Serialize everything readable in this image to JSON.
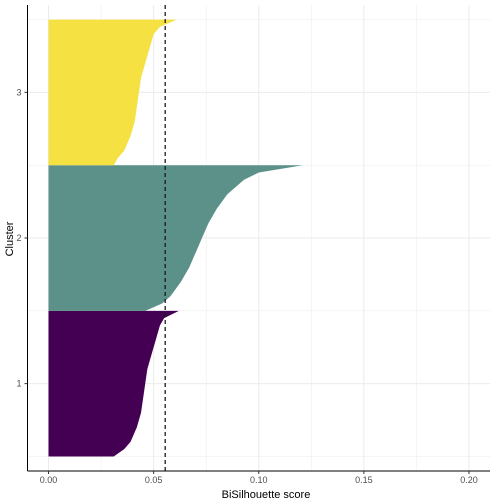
{
  "chart_data": {
    "type": "silhouette",
    "xlabel": "BiSilhouette score",
    "ylabel": "Cluster",
    "xlim": [
      -0.01,
      0.21
    ],
    "x_ticks": [
      0.0,
      0.05,
      0.1,
      0.15,
      0.2
    ],
    "x_tick_labels": [
      "0.00",
      "0.05",
      "0.10",
      "0.15",
      "0.20"
    ],
    "y_categories": [
      "1",
      "2",
      "3"
    ],
    "grid": true,
    "reference_line": {
      "x": 0.0555,
      "style": "dashed",
      "meaning": "average silhouette score"
    },
    "clusters": [
      {
        "name": "1",
        "color": "#440154",
        "profile": [
          [
            0.0,
            0.031
          ],
          [
            0.05,
            0.036
          ],
          [
            0.1,
            0.039
          ],
          [
            0.2,
            0.042
          ],
          [
            0.3,
            0.044
          ],
          [
            0.4,
            0.045
          ],
          [
            0.5,
            0.046
          ],
          [
            0.6,
            0.047
          ],
          [
            0.7,
            0.049
          ],
          [
            0.8,
            0.051
          ],
          [
            0.9,
            0.053
          ],
          [
            0.95,
            0.055
          ],
          [
            1.0,
            0.062
          ]
        ]
      },
      {
        "name": "2",
        "color": "#5B9189",
        "profile": [
          [
            0.0,
            0.046
          ],
          [
            0.05,
            0.054
          ],
          [
            0.1,
            0.058
          ],
          [
            0.2,
            0.063
          ],
          [
            0.3,
            0.067
          ],
          [
            0.4,
            0.07
          ],
          [
            0.5,
            0.073
          ],
          [
            0.6,
            0.076
          ],
          [
            0.7,
            0.08
          ],
          [
            0.8,
            0.085
          ],
          [
            0.9,
            0.093
          ],
          [
            0.95,
            0.1
          ],
          [
            1.0,
            0.121
          ]
        ]
      },
      {
        "name": "3",
        "color": "#F5E142",
        "profile": [
          [
            0.0,
            0.031
          ],
          [
            0.05,
            0.033
          ],
          [
            0.1,
            0.036
          ],
          [
            0.2,
            0.039
          ],
          [
            0.3,
            0.041
          ],
          [
            0.4,
            0.042
          ],
          [
            0.5,
            0.043
          ],
          [
            0.6,
            0.044
          ],
          [
            0.7,
            0.046
          ],
          [
            0.8,
            0.048
          ],
          [
            0.9,
            0.05
          ],
          [
            0.95,
            0.053
          ],
          [
            1.0,
            0.061
          ]
        ]
      }
    ],
    "colors": {
      "grid": "#EBEBEB",
      "axis": "#000000",
      "reference_line": "#1A1A1A"
    }
  }
}
